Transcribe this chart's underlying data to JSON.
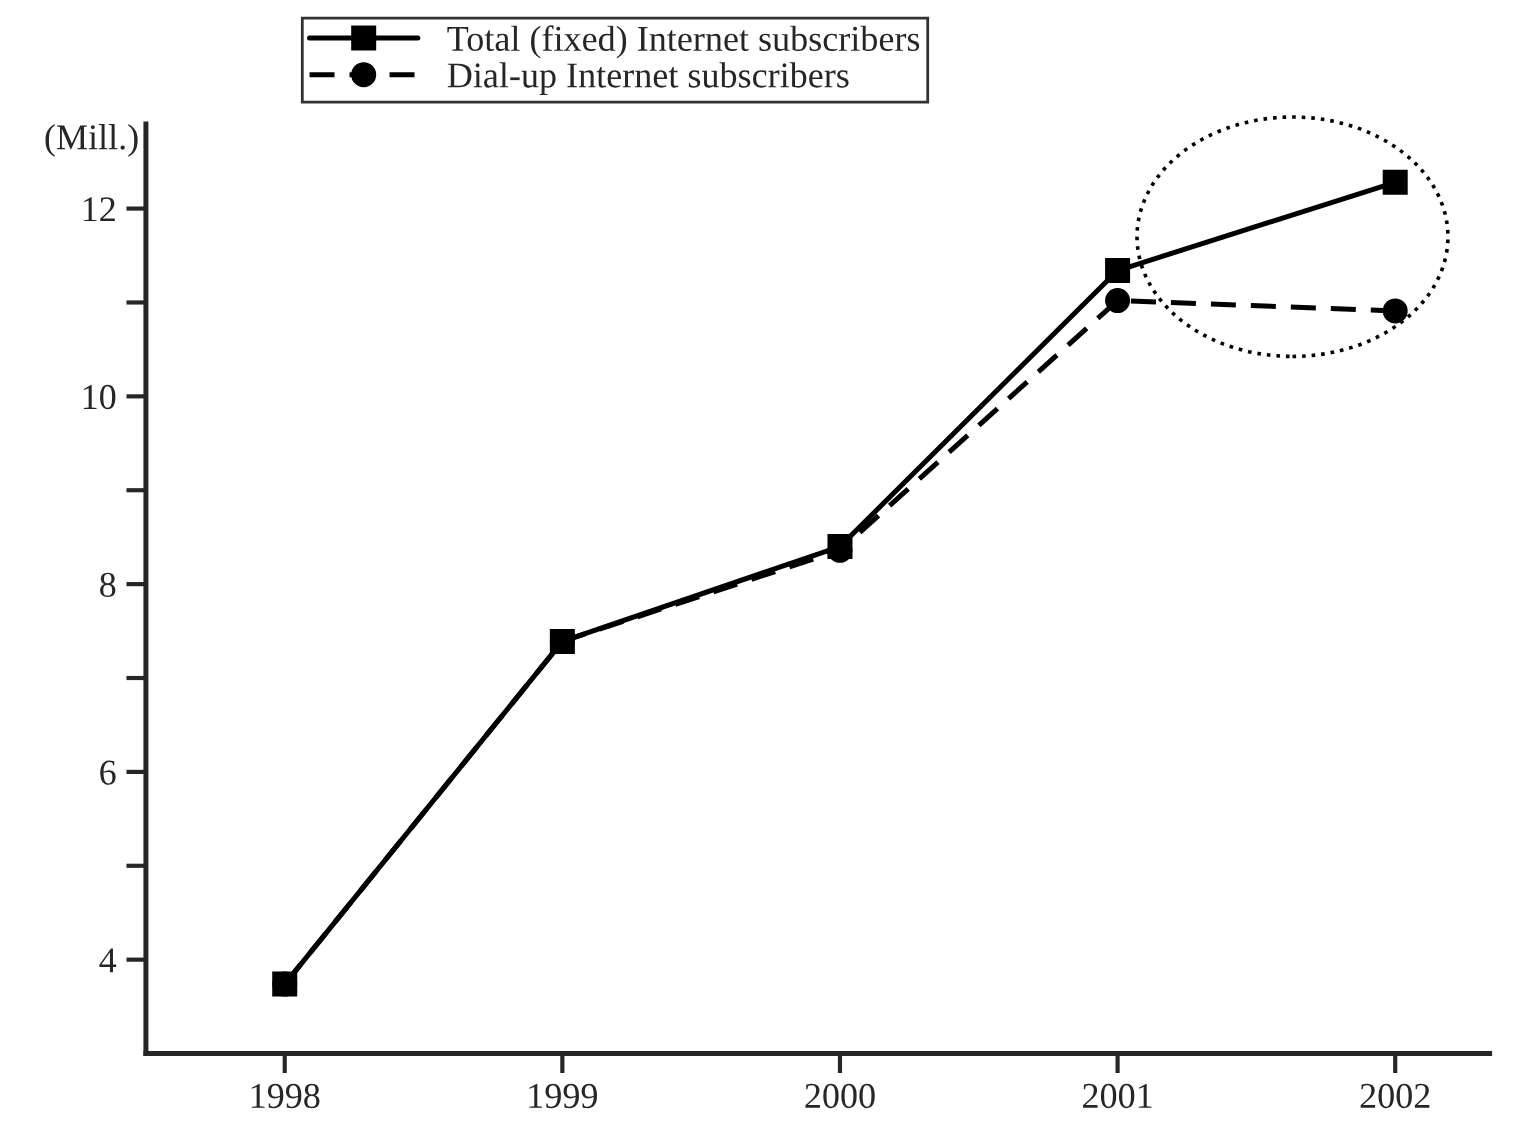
{
  "chart_data": {
    "type": "line",
    "ylabel": "(Mill.)",
    "x": [
      1998,
      1999,
      2000,
      2001,
      2002
    ],
    "series": [
      {
        "name": "Total (fixed) Internet subscribers",
        "color": "#000000",
        "marker": "square",
        "line_style": "solid",
        "values": [
          3.74,
          7.39,
          8.4,
          11.34,
          12.28
        ]
      },
      {
        "name": "Dial-up Internet subscribers",
        "color": "#000000",
        "marker": "circle",
        "line_style": "dashed",
        "values": [
          3.74,
          7.39,
          8.36,
          11.02,
          10.91
        ]
      }
    ],
    "xlim": [
      1997.5,
      2002.34
    ],
    "xticks": [
      1998,
      1999,
      2000,
      2001,
      2002
    ],
    "ylim": [
      3,
      12.9
    ],
    "yticks": [
      4,
      {
        "value": 5,
        "label": null
      },
      6,
      {
        "value": 7,
        "label": null
      },
      8,
      {
        "value": 9,
        "label": null
      },
      10,
      {
        "value": 11,
        "label": null
      },
      12
    ],
    "grid": false,
    "legend": "top"
  }
}
